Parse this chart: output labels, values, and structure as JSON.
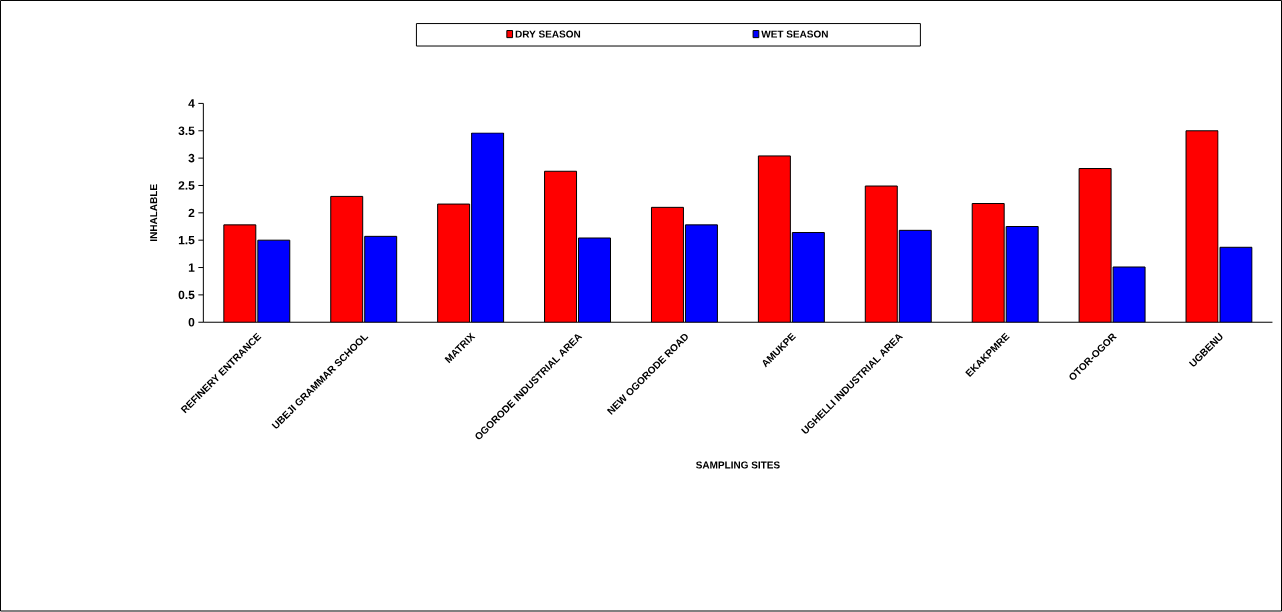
{
  "chart_data": {
    "type": "bar",
    "xlabel": "SAMPLING SITES",
    "ylabel": "INHALABLE",
    "categories": [
      "REFINERY ENTRANCE",
      "UBEJI GRAMMAR SCHOOL",
      "MATRIX",
      "OGORODE INDUSTRIAL AREA",
      "NEW OGORODE ROAD",
      "AMUKPE",
      "UGHELLI INDUSTRIAL AREA",
      "EKAKPMRE",
      "OTOR-OGOR",
      "UGBENU"
    ],
    "series": [
      {
        "name": "DRY SEASON",
        "color": "#ff0000",
        "values": [
          1.78,
          2.3,
          2.16,
          2.76,
          2.1,
          3.04,
          2.49,
          2.17,
          2.81,
          3.5
        ]
      },
      {
        "name": "WET SEASON",
        "color": "#0000ff",
        "values": [
          1.5,
          1.57,
          3.46,
          1.54,
          1.78,
          1.64,
          1.68,
          1.75,
          1.01,
          1.37
        ]
      }
    ],
    "ylim": [
      0,
      4
    ],
    "yticks": [
      0,
      0.5,
      1,
      1.5,
      2,
      2.5,
      3,
      3.5,
      4
    ],
    "grid": false,
    "legend": "top"
  }
}
